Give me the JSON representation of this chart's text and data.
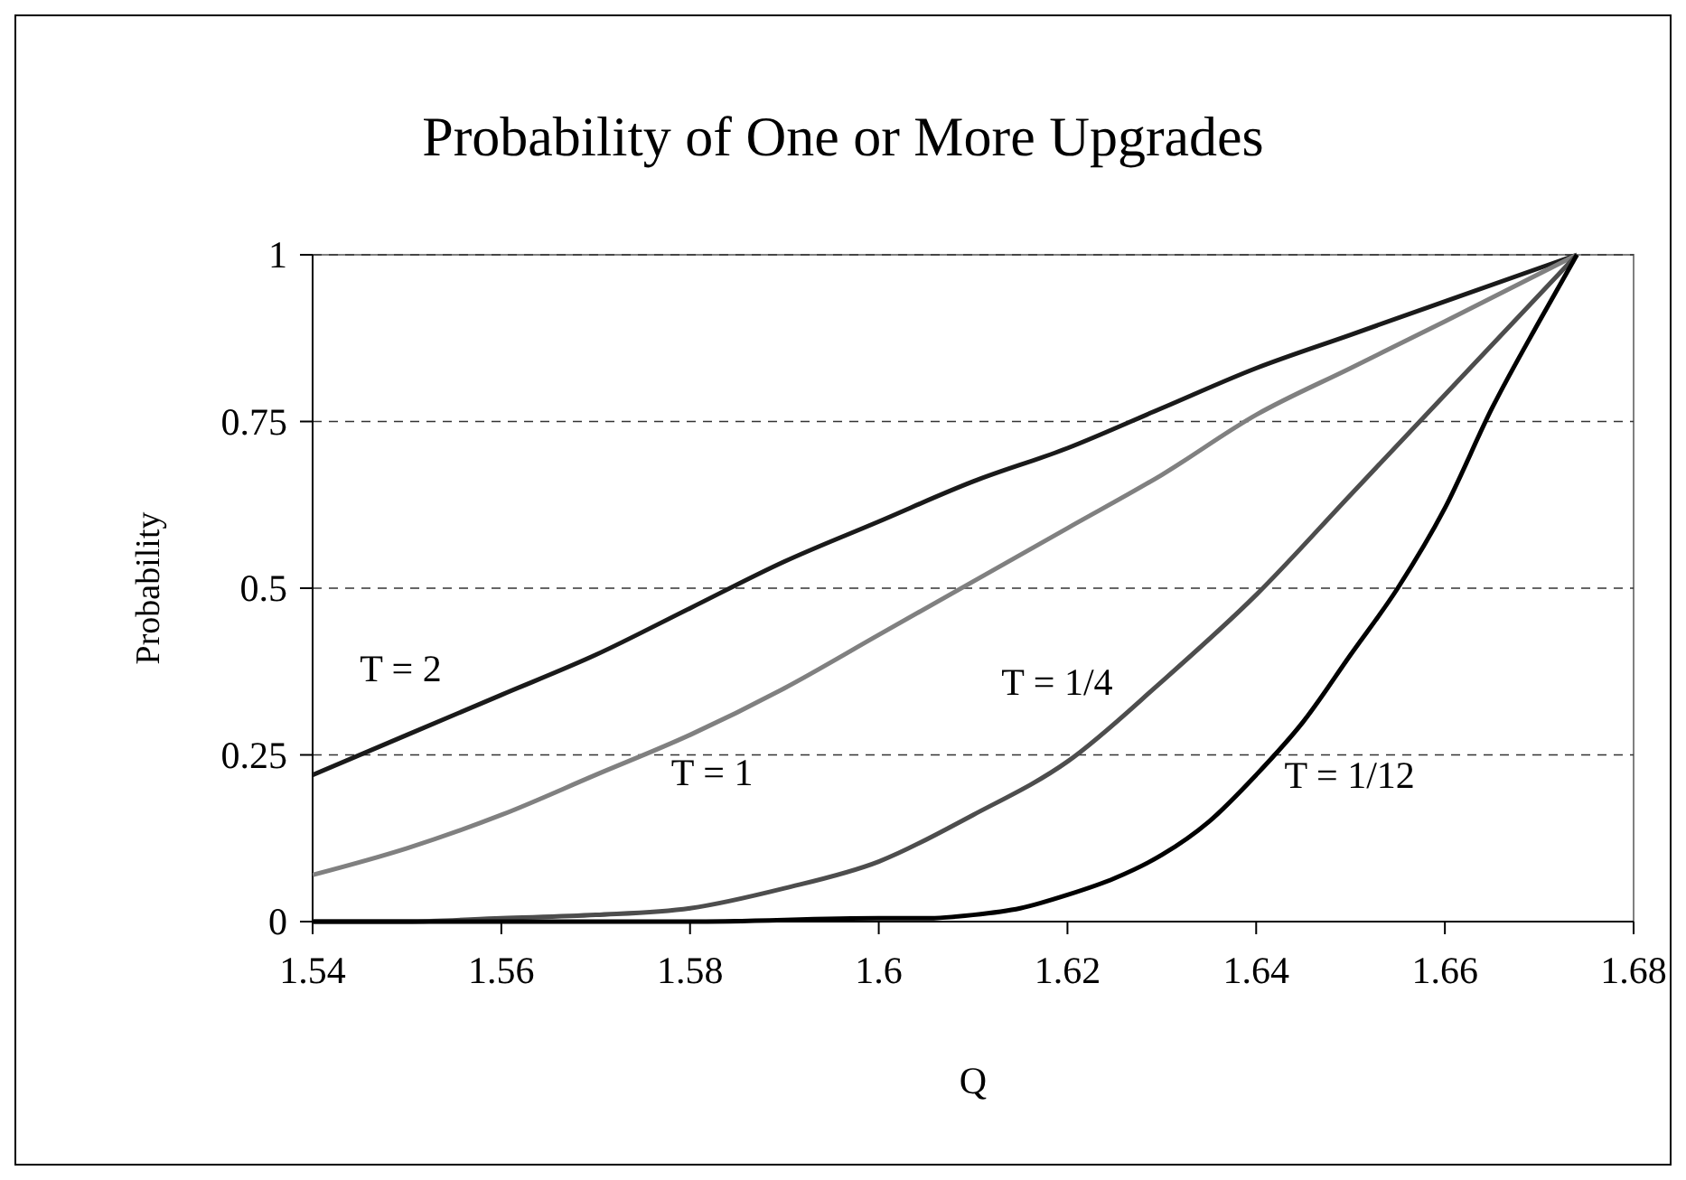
{
  "chart_data": {
    "type": "line",
    "title": "Probability of One or More Upgrades",
    "xlabel": "Q",
    "ylabel": "Probability",
    "xlim": [
      1.54,
      1.68
    ],
    "xticks": [
      1.54,
      1.56,
      1.58,
      1.6,
      1.62,
      1.64,
      1.66,
      1.68
    ],
    "ylim": [
      0,
      1
    ],
    "yticks": [
      0,
      0.25,
      0.5,
      0.75,
      1
    ],
    "grid": "y",
    "line_style": "solid",
    "x": [
      1.54,
      1.55,
      1.56,
      1.57,
      1.58,
      1.59,
      1.6,
      1.61,
      1.62,
      1.63,
      1.64,
      1.65,
      1.66,
      1.674
    ],
    "series": [
      {
        "name": "T = 2",
        "color": "#1a1a1a",
        "values": [
          0.22,
          0.28,
          0.34,
          0.4,
          0.47,
          0.54,
          0.6,
          0.66,
          0.71,
          0.77,
          0.83,
          0.88,
          0.93,
          1
        ]
      },
      {
        "name": "T = 1",
        "color": "#808080",
        "values": [
          0.07,
          0.11,
          0.16,
          0.22,
          0.28,
          0.35,
          0.43,
          0.51,
          0.59,
          0.67,
          0.76,
          0.83,
          0.9,
          1
        ]
      },
      {
        "name": "T = 1/4",
        "color": "#4d4d4d",
        "values": [
          0,
          0,
          0.005,
          0.01,
          0.02,
          0.05,
          0.09,
          0.16,
          0.24,
          0.36,
          0.49,
          0.64,
          0.79,
          1
        ]
      },
      {
        "name": "T = 1/12",
        "color": "#000000",
        "x": [
          1.54,
          1.58,
          1.6,
          1.605,
          1.61,
          1.615,
          1.62,
          1.625,
          1.63,
          1.635,
          1.64,
          1.645,
          1.65,
          1.655,
          1.66,
          1.665,
          1.67,
          1.674
        ],
        "values": [
          0,
          0,
          0.005,
          0.005,
          0.01,
          0.02,
          0.04,
          0.065,
          0.1,
          0.15,
          0.22,
          0.3,
          0.4,
          0.5,
          0.62,
          0.77,
          0.9,
          1
        ]
      }
    ]
  }
}
